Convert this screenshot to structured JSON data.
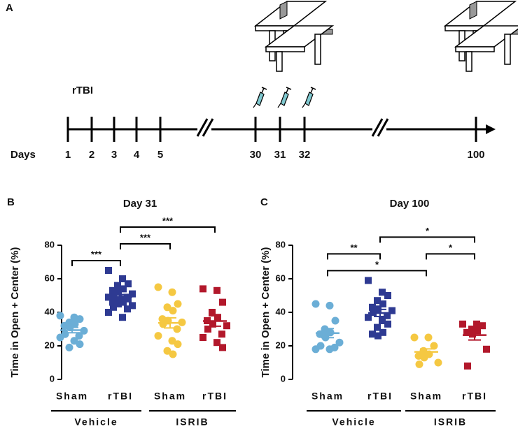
{
  "timeline": {
    "panel_label": "A",
    "event": "rTBI",
    "axis_label": "Days",
    "day_labels": [
      "1",
      "2",
      "3",
      "4",
      "5",
      "30",
      "31",
      "32",
      "100"
    ]
  },
  "chart_data": [
    {
      "type": "dot",
      "panel_label": "B",
      "title": "Day 31",
      "y_label": "Time in Open + Center (%)",
      "ylim": [
        0,
        80
      ],
      "yticks": [
        0,
        20,
        40,
        60,
        80
      ],
      "groups": [
        {
          "category": "Sham",
          "color": "#6baed6",
          "marker": "circle",
          "mean": 29.4,
          "sem": 1.6,
          "values": [
            38,
            37,
            36,
            34,
            33,
            32,
            31,
            29,
            27,
            26,
            25,
            23,
            21,
            19
          ]
        },
        {
          "category": "rTBI",
          "color": "#2e3a92",
          "marker": "square",
          "mean": 49.2,
          "sem": 1.4,
          "values": [
            65,
            60,
            57,
            56,
            54,
            53,
            52,
            51,
            50,
            49,
            49,
            48,
            48,
            47,
            46,
            46,
            45,
            44,
            43,
            42,
            40,
            37
          ]
        },
        {
          "category": "Sham",
          "color": "#f5c842",
          "marker": "circle",
          "mean": 33.7,
          "sem": 3.0,
          "values": [
            55,
            52,
            45,
            43,
            41,
            36,
            35,
            34,
            33,
            30,
            26,
            23,
            21,
            17,
            15
          ]
        },
        {
          "category": "rTBI",
          "color": "#b2182b",
          "marker": "square",
          "mean": 34.8,
          "sem": 3.1,
          "values": [
            54,
            53,
            46,
            40,
            37,
            35,
            33,
            32,
            30,
            27,
            25,
            22,
            19
          ]
        }
      ],
      "group_labels": [
        {
          "label": "Vehicle",
          "from": 0,
          "to": 1
        },
        {
          "label": "ISRIB",
          "from": 2,
          "to": 3
        }
      ],
      "comparisons": [
        {
          "from": 0,
          "to": 1,
          "label": "***"
        },
        {
          "from": 1,
          "to": 2,
          "label": "***"
        },
        {
          "from": 1,
          "to": 3,
          "label": "***"
        }
      ]
    },
    {
      "type": "dot",
      "panel_label": "C",
      "title": "Day 100",
      "y_label": "Time in Open + Center (%)",
      "ylim": [
        0,
        80
      ],
      "yticks": [
        0,
        20,
        40,
        60,
        80
      ],
      "groups": [
        {
          "category": "Sham",
          "color": "#6baed6",
          "marker": "circle",
          "mean": 27.6,
          "sem": 2.7,
          "values": [
            45,
            44,
            35,
            30,
            28,
            27,
            25,
            22,
            20,
            19,
            18,
            18
          ]
        },
        {
          "category": "rTBI",
          "color": "#2e3a92",
          "marker": "square",
          "mean": 39.6,
          "sem": 2.1,
          "values": [
            59,
            52,
            50,
            47,
            45,
            43,
            42,
            41,
            40,
            38,
            37,
            35,
            33,
            31,
            28,
            27,
            26
          ]
        },
        {
          "category": "Sham",
          "color": "#f5c842",
          "marker": "circle",
          "mean": 16.4,
          "sem": 1.8,
          "values": [
            25,
            25,
            20,
            17,
            15,
            14,
            13,
            10,
            9
          ]
        },
        {
          "category": "rTBI",
          "color": "#b2182b",
          "marker": "square",
          "mean": 26.4,
          "sem": 2.9,
          "values": [
            33,
            33,
            32,
            30,
            29,
            28,
            27,
            18,
            8
          ]
        }
      ],
      "group_labels": [
        {
          "label": "Vehicle",
          "from": 0,
          "to": 1
        },
        {
          "label": "ISRIB",
          "from": 2,
          "to": 3
        }
      ],
      "comparisons": [
        {
          "from": 0,
          "to": 2,
          "label": "*"
        },
        {
          "from": 0,
          "to": 1,
          "label": "**"
        },
        {
          "from": 2,
          "to": 3,
          "label": "*"
        },
        {
          "from": 1,
          "to": 3,
          "label": "*"
        }
      ]
    }
  ]
}
